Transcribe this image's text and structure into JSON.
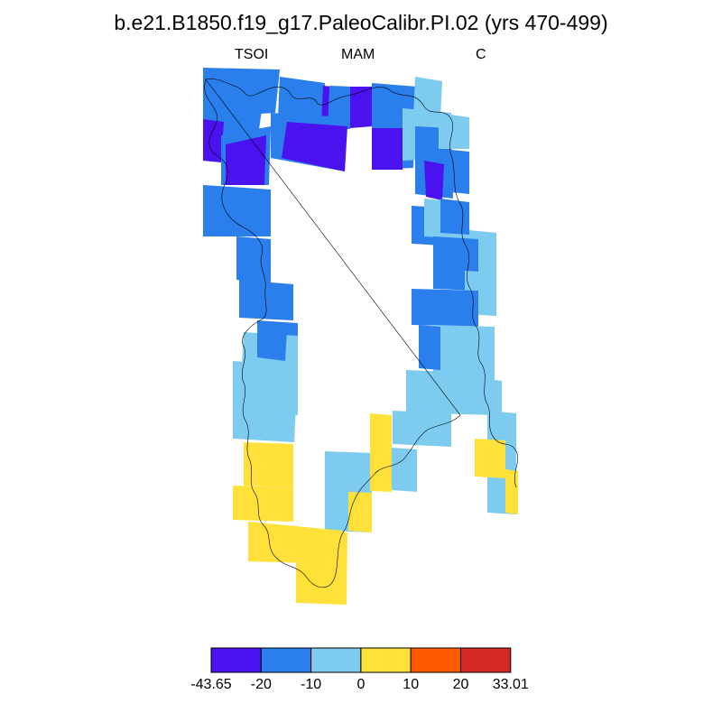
{
  "title": "b.e21.B1850.f19_g17.PaleoCalibr.PI.02 (yrs 470-499)",
  "subtitle": {
    "left": "TSOI",
    "center": "MAM",
    "right": "C"
  },
  "colors": {
    "bin_neg43_neg20": "#4b12f0",
    "bin_neg20_neg10": "#2a7fec",
    "bin_neg10_0": "#7ecbf0",
    "bin_0_10": "#ffe13a",
    "bin_10_20": "#ff5a00",
    "bin_20_33": "#d42a26",
    "coastline": "#000000"
  },
  "legend": {
    "type": "colorbar",
    "tick_labels": [
      "-43.65",
      "-20",
      "-10",
      "0",
      "10",
      "20",
      "33.01"
    ]
  }
}
